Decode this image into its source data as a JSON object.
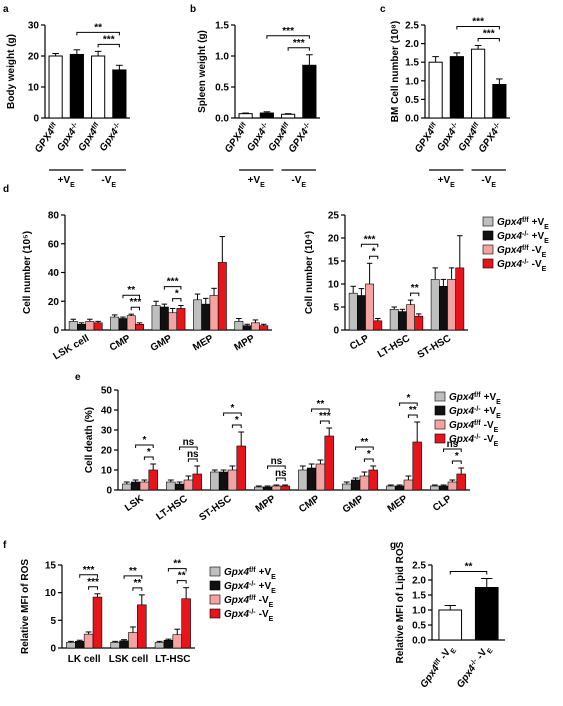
{
  "chart_data": [
    {
      "type": "bar",
      "panel": "a",
      "ylabel": "Body weight (g)",
      "ylim": [
        0,
        30
      ],
      "yticks": [
        0,
        10,
        20,
        30
      ],
      "categories": [
        {
          "name": "GPX4",
          "sup": "f/f"
        },
        {
          "name": "Gpx4",
          "sup": "-/-"
        },
        {
          "name": "Gpx4",
          "sup": "f/f"
        },
        {
          "name": "Gpx4",
          "sup": "-/-"
        }
      ],
      "groups": [
        {
          "text": "+V",
          "sub": "E"
        },
        {
          "text": "-V",
          "sub": "E"
        }
      ],
      "values": [
        20,
        20.5,
        20,
        15.5
      ],
      "errors": [
        0.8,
        1.5,
        1.5,
        1.5
      ],
      "colors": [
        "#ffffff",
        "#000000",
        "#ffffff",
        "#000000"
      ],
      "comparisons": [
        {
          "label": "***",
          "between": [
            2,
            3
          ]
        },
        {
          "label": "**",
          "between": [
            1,
            3
          ]
        }
      ]
    },
    {
      "type": "bar",
      "panel": "b",
      "ylabel": "Spleen weight (g)",
      "ylim": [
        0,
        1.5
      ],
      "yticks": [
        {
          "value": 0,
          "label": "0.0"
        },
        {
          "value": 0.5,
          "label": "0.5"
        },
        {
          "value": 1,
          "label": "1.0"
        },
        {
          "value": 1.5,
          "label": "1.5"
        }
      ],
      "categories": [
        {
          "name": "GPX4",
          "sup": "f/f"
        },
        {
          "name": "Gpx4",
          "sup": "-/-"
        },
        {
          "name": "Gpx4",
          "sup": "f/f"
        },
        {
          "name": "GPX4",
          "sup": "-/-"
        }
      ],
      "groups": [
        {
          "text": "+V",
          "sub": "E"
        },
        {
          "text": "-V",
          "sub": "E"
        }
      ],
      "values": [
        0.07,
        0.08,
        0.06,
        0.85
      ],
      "errors": [
        0.01,
        0.02,
        0.01,
        0.17
      ],
      "colors": [
        "#ffffff",
        "#000000",
        "#ffffff",
        "#000000"
      ],
      "comparisons": [
        {
          "label": "***",
          "between": [
            2,
            3
          ]
        },
        {
          "label": "***",
          "between": [
            1,
            3
          ]
        }
      ]
    },
    {
      "type": "bar",
      "panel": "c",
      "ylabel": "BM Cell number (10⁸)",
      "ylim": [
        0,
        2.5
      ],
      "yticks": [
        {
          "value": 0,
          "label": "0.0"
        },
        {
          "value": 0.5,
          "label": "0.5"
        },
        {
          "value": 1,
          "label": "1.0"
        },
        {
          "value": 1.5,
          "label": "1.5"
        },
        {
          "value": 2,
          "label": "2.0"
        },
        {
          "value": 2.5,
          "label": "2.5"
        }
      ],
      "categories": [
        {
          "name": "GPX4",
          "sup": "f/f"
        },
        {
          "name": "Gpx4",
          "sup": "-/-"
        },
        {
          "name": "Gpx4",
          "sup": "f/f"
        },
        {
          "name": "GPX4",
          "sup": "-/-"
        }
      ],
      "groups": [
        {
          "text": "+V",
          "sub": "E"
        },
        {
          "text": "-V",
          "sub": "E"
        }
      ],
      "values": [
        1.5,
        1.65,
        1.85,
        0.9
      ],
      "errors": [
        0.15,
        0.1,
        0.1,
        0.15
      ],
      "colors": [
        "#ffffff",
        "#000000",
        "#ffffff",
        "#000000"
      ],
      "comparisons": [
        {
          "label": "***",
          "between": [
            2,
            3
          ]
        },
        {
          "label": "***",
          "between": [
            1,
            3
          ]
        }
      ]
    },
    {
      "type": "grouped-bar",
      "panel": "d",
      "ylabel": "Cell number (10⁵)",
      "ylim": [
        0,
        80
      ],
      "yticks": [
        0,
        20,
        40,
        60,
        80
      ],
      "categories": [
        "LSK cell",
        "CMP",
        "GMP",
        "MEP",
        "MPP"
      ],
      "series": [
        {
          "name": "Gpx4",
          "sup": "f/f",
          "cond": "+V",
          "sub": "E",
          "color": "#bfbfbf",
          "values": [
            6,
            9,
            17,
            21,
            6
          ],
          "errors": [
            1.5,
            1.5,
            3,
            4,
            2
          ]
        },
        {
          "name": "Gpx4",
          "sup": "-/-",
          "cond": "+V",
          "sub": "E",
          "color": "#111111",
          "values": [
            4,
            8,
            16,
            18,
            3
          ],
          "errors": [
            1,
            1,
            2,
            4,
            1
          ]
        },
        {
          "name": "Gpx4",
          "sup": "f/f",
          "cond": "-V",
          "sub": "E",
          "color": "#f4a3a3",
          "values": [
            6,
            10,
            12,
            24,
            5
          ],
          "errors": [
            1.5,
            1,
            3,
            5,
            2
          ]
        },
        {
          "name": "Gpx4",
          "sup": "-/-",
          "cond": "-V",
          "sub": "E",
          "color": "#e8141b",
          "values": [
            5,
            4,
            15,
            47,
            3
          ],
          "errors": [
            1,
            1,
            2,
            18,
            1
          ]
        }
      ],
      "comparisons": [
        {
          "category": 1,
          "between": [
            2,
            3
          ],
          "label": "***"
        },
        {
          "category": 1,
          "between": [
            1,
            3
          ],
          "label": "**"
        },
        {
          "category": 2,
          "between": [
            2,
            3
          ],
          "label": "*"
        },
        {
          "category": 2,
          "between": [
            1,
            3
          ],
          "label": "***"
        }
      ]
    },
    {
      "type": "grouped-bar",
      "ylabel": "Cell number (10⁴)",
      "ylim": [
        0,
        25
      ],
      "yticks": [
        0,
        5,
        10,
        15,
        20,
        25
      ],
      "legend": "right",
      "categories": [
        "CLP",
        "LT-HSC",
        "ST-HSC"
      ],
      "series": [
        {
          "name": "Gpx4",
          "sup": "f/f",
          "cond": "+V",
          "sub": "E",
          "color": "#bfbfbf",
          "values": [
            8,
            4.5,
            11
          ],
          "errors": [
            1.5,
            0.5,
            2.5
          ]
        },
        {
          "name": "Gpx4",
          "sup": "-/-",
          "cond": "+V",
          "sub": "E",
          "color": "#111111",
          "values": [
            7.5,
            4,
            9.5
          ],
          "errors": [
            1.5,
            0.5,
            1.5
          ]
        },
        {
          "name": "Gpx4",
          "sup": "f/f",
          "cond": "-V",
          "sub": "E",
          "color": "#f4a3a3",
          "values": [
            10,
            5.5,
            11
          ],
          "errors": [
            4.5,
            1,
            2.5
          ]
        },
        {
          "name": "Gpx4",
          "sup": "-/-",
          "cond": "-V",
          "sub": "E",
          "color": "#e8141b",
          "values": [
            2,
            3,
            13.5
          ],
          "errors": [
            0.5,
            0.5,
            7
          ]
        }
      ],
      "comparisons": [
        {
          "category": 0,
          "between": [
            2,
            3
          ],
          "label": "*"
        },
        {
          "category": 0,
          "between": [
            1,
            3
          ],
          "label": "***"
        },
        {
          "category": 1,
          "between": [
            2,
            3
          ],
          "label": "**"
        }
      ]
    },
    {
      "type": "grouped-bar",
      "panel": "e",
      "ylabel": "Cell death (%)",
      "ylim": [
        0,
        50
      ],
      "yticks": [
        0,
        10,
        20,
        30,
        40,
        50
      ],
      "legend": "upper-right",
      "categories": [
        "LSK",
        "LT-HSC",
        "ST-HSC",
        "MPP",
        "CMP",
        "GMP",
        "MEP",
        "CLP"
      ],
      "series": [
        {
          "name": "Gpx4",
          "sup": "f/f",
          "cond": "+V",
          "sub": "E",
          "color": "#bfbfbf",
          "values": [
            3,
            4,
            9,
            1.5,
            10,
            3,
            2,
            2
          ],
          "errors": [
            1,
            1,
            1,
            0.5,
            2,
            1,
            0.5,
            0.5
          ]
        },
        {
          "name": "Gpx4",
          "sup": "-/-",
          "cond": "+V",
          "sub": "E",
          "color": "#111111",
          "values": [
            4,
            3,
            9,
            1.5,
            11,
            5,
            2,
            2
          ],
          "errors": [
            1,
            1,
            1,
            0.5,
            2,
            1,
            0.5,
            0.5
          ]
        },
        {
          "name": "Gpx4",
          "sup": "f/f",
          "cond": "-V",
          "sub": "E",
          "color": "#f4a3a3",
          "values": [
            4,
            5,
            10,
            2,
            13,
            7,
            5,
            4
          ],
          "errors": [
            1,
            2,
            2,
            0.5,
            2,
            2,
            2,
            1
          ]
        },
        {
          "name": "Gpx4",
          "sup": "-/-",
          "cond": "-V",
          "sub": "E",
          "color": "#e8141b",
          "values": [
            10,
            8,
            22,
            2,
            27,
            10,
            24,
            8
          ],
          "errors": [
            3,
            4,
            7,
            0.5,
            4,
            2,
            10,
            3
          ]
        }
      ],
      "comparisons": [
        {
          "category": 0,
          "between": [
            2,
            3
          ],
          "label": "*"
        },
        {
          "category": 0,
          "between": [
            1,
            3
          ],
          "label": "*"
        },
        {
          "category": 1,
          "between": [
            2,
            3
          ],
          "label": "ns"
        },
        {
          "category": 1,
          "between": [
            1,
            3
          ],
          "label": "ns"
        },
        {
          "category": 2,
          "between": [
            2,
            3
          ],
          "label": "*"
        },
        {
          "category": 2,
          "between": [
            1,
            3
          ],
          "label": "*"
        },
        {
          "category": 3,
          "between": [
            2,
            3
          ],
          "label": "ns"
        },
        {
          "category": 3,
          "between": [
            1,
            3
          ],
          "label": "ns"
        },
        {
          "category": 4,
          "between": [
            2,
            3
          ],
          "label": "***"
        },
        {
          "category": 4,
          "between": [
            1,
            3
          ],
          "label": "**"
        },
        {
          "category": 5,
          "between": [
            2,
            3
          ],
          "label": "*"
        },
        {
          "category": 5,
          "between": [
            1,
            3
          ],
          "label": "**"
        },
        {
          "category": 6,
          "between": [
            2,
            3
          ],
          "label": "**"
        },
        {
          "category": 6,
          "between": [
            1,
            3
          ],
          "label": "*"
        },
        {
          "category": 7,
          "between": [
            2,
            3
          ],
          "label": "*"
        },
        {
          "category": 7,
          "between": [
            1,
            3
          ],
          "label": "ns"
        }
      ]
    },
    {
      "type": "grouped-bar",
      "panel": "f",
      "ylabel": "Relative MFI of ROS",
      "ylim": [
        0,
        15
      ],
      "yticks": [
        0,
        5,
        10,
        15
      ],
      "legend": "right",
      "categories": [
        "LK cell",
        "LSK cell",
        "LT-HSC"
      ],
      "series": [
        {
          "name": "Gpx4",
          "sup": "f/f",
          "cond": "+V",
          "sub": "E",
          "color": "#bfbfbf",
          "values": [
            1,
            1,
            1
          ],
          "errors": [
            0.2,
            0.2,
            0.2
          ]
        },
        {
          "name": "Gpx4",
          "sup": "-/-",
          "cond": "+V",
          "sub": "E",
          "color": "#111111",
          "values": [
            1.2,
            1.3,
            1.4
          ],
          "errors": [
            0.2,
            0.2,
            0.2
          ]
        },
        {
          "name": "Gpx4",
          "sup": "f/f",
          "cond": "-V",
          "sub": "E",
          "color": "#f4a3a3",
          "values": [
            2.5,
            2.8,
            2.4
          ],
          "errors": [
            0.4,
            1,
            1
          ]
        },
        {
          "name": "Gpx4",
          "sup": "-/-",
          "cond": "-V",
          "sub": "E",
          "color": "#e8141b",
          "values": [
            9.2,
            7.8,
            8.9
          ],
          "errors": [
            0.6,
            1.8,
            2
          ]
        }
      ],
      "comparisons": [
        {
          "category": 0,
          "between": [
            2,
            3
          ],
          "label": "***"
        },
        {
          "category": 0,
          "between": [
            1,
            3
          ],
          "label": "***"
        },
        {
          "category": 1,
          "between": [
            2,
            3
          ],
          "label": "**"
        },
        {
          "category": 1,
          "between": [
            1,
            3
          ],
          "label": "**"
        },
        {
          "category": 2,
          "between": [
            2,
            3
          ],
          "label": "**"
        },
        {
          "category": 2,
          "between": [
            1,
            3
          ],
          "label": "**"
        }
      ]
    },
    {
      "type": "bar",
      "panel": "g",
      "ylabel": "Relative MFI of Lipid ROS",
      "ylim": [
        0,
        2.5
      ],
      "yticks": [
        {
          "value": 0,
          "label": "0.0"
        },
        {
          "value": 0.5,
          "label": "0.5"
        },
        {
          "value": 1,
          "label": "1.0"
        },
        {
          "value": 1.5,
          "label": "1.5"
        },
        {
          "value": 2,
          "label": "2.0"
        },
        {
          "value": 2.5,
          "label": "2.5"
        }
      ],
      "categories": [
        {
          "name": "Gpx4",
          "sup": "f/f",
          "cond": "-V",
          "sub": "E"
        },
        {
          "name": "Gpx4",
          "sup": "-/-",
          "cond": "-V",
          "sub": "E"
        }
      ],
      "values": [
        1.0,
        1.75
      ],
      "errors": [
        0.15,
        0.3
      ],
      "colors": [
        "#ffffff",
        "#000000"
      ],
      "comparisons": [
        {
          "label": "**",
          "between": [
            0,
            1
          ]
        }
      ]
    }
  ]
}
